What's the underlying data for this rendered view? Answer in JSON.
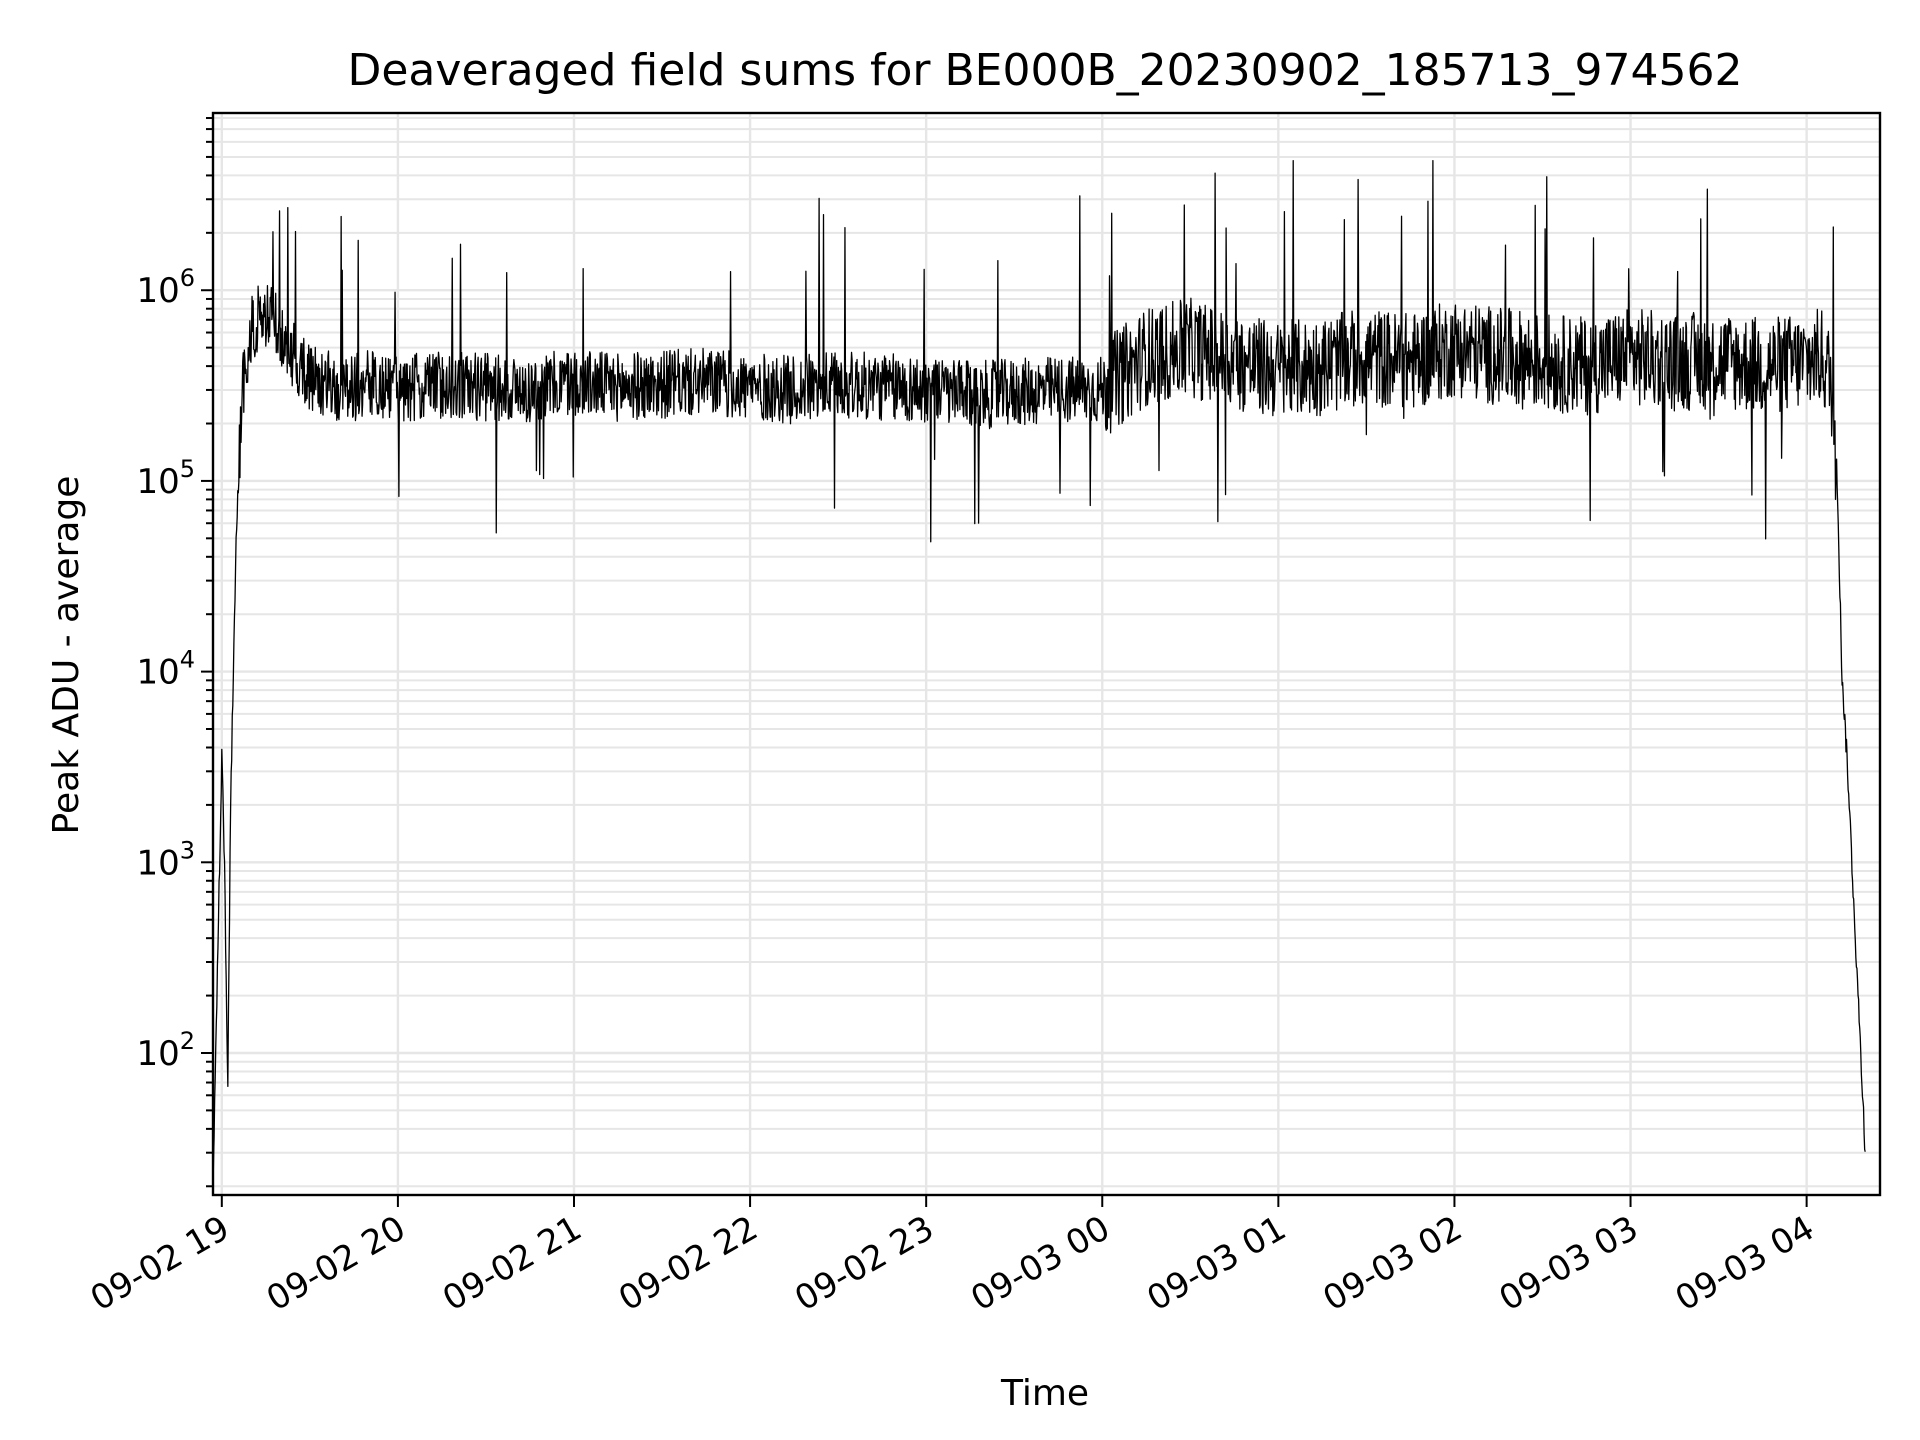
{
  "chart_data": {
    "type": "line",
    "title": "Deaveraged field sums for BE000B_20230902_185713_974562",
    "xlabel": "Time",
    "ylabel": "Peak ADU - average",
    "x_axis": {
      "kind": "time",
      "range": [
        "09-02 18:57",
        "09-03 04:25"
      ],
      "ticks": [
        "09-02 19",
        "09-02 20",
        "09-02 21",
        "09-02 22",
        "09-02 23",
        "09-03 00",
        "09-03 01",
        "09-03 02",
        "09-03 03",
        "09-03 04"
      ]
    },
    "y_axis": {
      "scale": "log",
      "range": [
        18,
        8500000
      ],
      "ticks": [
        {
          "base": "10",
          "exp": "2",
          "value": 100
        },
        {
          "base": "10",
          "exp": "3",
          "value": 1000
        },
        {
          "base": "10",
          "exp": "4",
          "value": 10000
        },
        {
          "base": "10",
          "exp": "5",
          "value": 100000
        },
        {
          "base": "10",
          "exp": "6",
          "value": 1000000
        }
      ]
    },
    "grid": true,
    "line_color": "#000000",
    "grid_color": "#e6e6e6",
    "series": [
      {
        "x": [
          "09-02 18:57",
          "09-02 19:00",
          "09-02 19:01",
          "09-02 19:02",
          "09-02 19:03",
          "09-02 19:05",
          "09-02 19:07",
          "09-02 19:10",
          "09-02 19:13",
          "09-02 19:17",
          "09-02 19:22",
          "09-02 19:30",
          "09-02 19:40",
          "09-02 19:50",
          "09-02 20:00",
          "09-02 20:15",
          "09-02 20:30",
          "09-02 20:45",
          "09-02 21:00",
          "09-02 21:15",
          "09-02 21:30",
          "09-02 21:45",
          "09-02 22:00",
          "09-02 22:15",
          "09-02 22:30",
          "09-02 22:45",
          "09-02 23:00",
          "09-02 23:15",
          "09-02 23:30",
          "09-02 23:45",
          "09-03 00:00",
          "09-03 00:15",
          "09-03 00:30",
          "09-03 00:45",
          "09-03 01:00",
          "09-03 01:15",
          "09-03 01:30",
          "09-03 01:45",
          "09-03 02:00",
          "09-03 02:15",
          "09-03 02:30",
          "09-03 02:45",
          "09-03 03:00",
          "09-03 03:15",
          "09-03 03:30",
          "09-03 03:45",
          "09-03 04:00",
          "09-03 04:05",
          "09-03 04:08",
          "09-03 04:10",
          "09-03 04:12",
          "09-03 04:14",
          "09-03 04:20"
        ],
        "y": [
          20,
          3500,
          900,
          60,
          2000,
          60000,
          300000,
          600000,
          750000,
          700000,
          500000,
          350000,
          300000,
          320000,
          300000,
          320000,
          310000,
          300000,
          330000,
          310000,
          320000,
          330000,
          310000,
          300000,
          320000,
          310000,
          300000,
          280000,
          290000,
          300000,
          300000,
          450000,
          500000,
          420000,
          380000,
          400000,
          450000,
          420000,
          500000,
          450000,
          420000,
          400000,
          450000,
          420000,
          430000,
          400000,
          420000,
          450000,
          350000,
          200000,
          10000,
          3000,
          30
        ]
      }
    ]
  }
}
